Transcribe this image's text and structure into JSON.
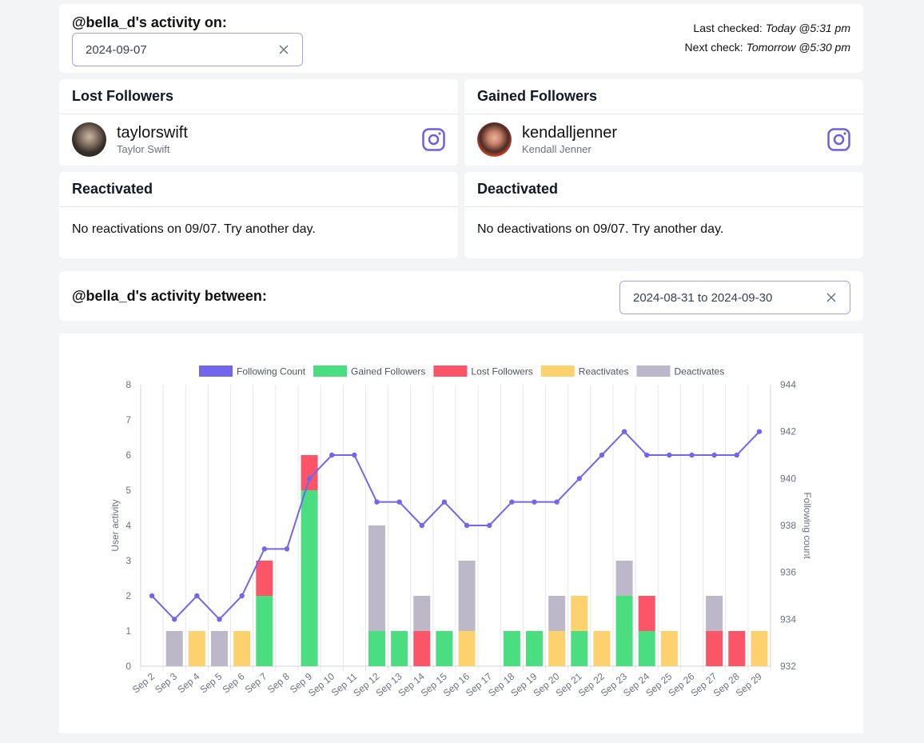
{
  "activity_on": {
    "title": "@bella_d's activity on:",
    "date_value": "2024-09-07",
    "last_checked_label": "Last checked:",
    "last_checked_value": "Today @5:31 pm",
    "next_check_label": "Next check:",
    "next_check_value": "Tomorrow @5:30 pm"
  },
  "lost_followers": {
    "title": "Lost Followers",
    "user": {
      "username": "taylorswift",
      "full_name": "Taylor Swift"
    }
  },
  "gained_followers": {
    "title": "Gained Followers",
    "user": {
      "username": "kendalljenner",
      "full_name": "Kendall Jenner"
    }
  },
  "reactivated": {
    "title": "Reactivated",
    "message": "No reactivations on 09/07. Try another day."
  },
  "deactivated": {
    "title": "Deactivated",
    "message": "No deactivations on 09/07. Try another day."
  },
  "activity_between": {
    "title": "@bella_d's activity between:",
    "range_value": "2024-08-31 to 2024-09-30"
  },
  "colors": {
    "following": "#7366ec",
    "gained": "#4ade80",
    "lost": "#fb5567",
    "reactivates": "#fdd16e",
    "deactivates": "#bdb8c9",
    "accent_border": "#a5a0e6",
    "instagram": "#6d5fe0"
  },
  "chart_data": {
    "type": "bar",
    "categories": [
      "Sep 2",
      "Sep 3",
      "Sep 4",
      "Sep 5",
      "Sep 6",
      "Sep 7",
      "Sep 8",
      "Sep 9",
      "Sep 10",
      "Sep 11",
      "Sep 12",
      "Sep 13",
      "Sep 14",
      "Sep 15",
      "Sep 16",
      "Sep 17",
      "Sep 18",
      "Sep 19",
      "Sep 20",
      "Sep 21",
      "Sep 22",
      "Sep 23",
      "Sep 24",
      "Sep 25",
      "Sep 26",
      "Sep 27",
      "Sep 28",
      "Sep 29"
    ],
    "legend": [
      "Following Count",
      "Gained Followers",
      "Lost Followers",
      "Reactivates",
      "Deactivates"
    ],
    "legend_position": "top-center",
    "stacked": true,
    "ylabel": "User activity",
    "y2label": "Following count",
    "ylim": [
      0,
      8
    ],
    "y2lim": [
      932,
      944
    ],
    "yticks": [
      0,
      1,
      2,
      3,
      4,
      5,
      6,
      7,
      8
    ],
    "y2ticks": [
      932,
      934,
      936,
      938,
      940,
      942,
      944
    ],
    "grid": "vertical",
    "series": [
      {
        "name": "Gained Followers",
        "type": "bar",
        "color_key": "gained",
        "values": [
          0,
          0,
          0,
          0,
          0,
          2,
          0,
          5,
          0,
          0,
          1,
          1,
          0,
          1,
          0,
          0,
          1,
          1,
          0,
          1,
          0,
          2,
          1,
          0,
          0,
          0,
          0,
          0
        ]
      },
      {
        "name": "Lost Followers",
        "type": "bar",
        "color_key": "lost",
        "values": [
          0,
          0,
          0,
          0,
          0,
          1,
          0,
          1,
          0,
          0,
          0,
          0,
          1,
          0,
          0,
          0,
          0,
          0,
          0,
          0,
          0,
          0,
          1,
          0,
          0,
          1,
          1,
          0
        ]
      },
      {
        "name": "Reactivates",
        "type": "bar",
        "color_key": "reactivates",
        "values": [
          0,
          0,
          1,
          0,
          1,
          0,
          0,
          0,
          0,
          0,
          0,
          0,
          0,
          0,
          1,
          0,
          0,
          0,
          1,
          1,
          1,
          0,
          0,
          1,
          0,
          0,
          0,
          1
        ]
      },
      {
        "name": "Deactivates",
        "type": "bar",
        "color_key": "deactivates",
        "values": [
          0,
          1,
          0,
          1,
          0,
          0,
          0,
          0,
          0,
          0,
          3,
          0,
          1,
          0,
          2,
          0,
          0,
          0,
          1,
          0,
          0,
          1,
          0,
          0,
          0,
          1,
          0,
          0
        ]
      },
      {
        "name": "Following Count",
        "type": "line",
        "axis": "right",
        "color_key": "following",
        "values": [
          935,
          934,
          935,
          934,
          935,
          937,
          937,
          940,
          941,
          941,
          939,
          939,
          938,
          939,
          938,
          938,
          939,
          939,
          939,
          940,
          941,
          942,
          941,
          941,
          941,
          941,
          941,
          942
        ]
      }
    ]
  }
}
